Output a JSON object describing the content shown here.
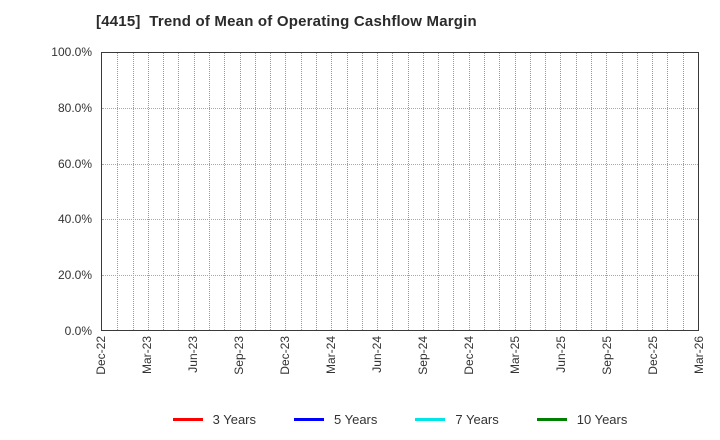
{
  "chart_data": {
    "type": "line",
    "title": "[4415]  Trend of Mean of Operating Cashflow Margin",
    "title_color": "#2b2b2b",
    "xlabel": "",
    "ylabel": "",
    "ylim": [
      0,
      100
    ],
    "y_ticks": {
      "values": [
        0,
        20,
        40,
        60,
        80,
        100
      ],
      "labels": [
        "0.0%",
        "20.0%",
        "40.0%",
        "60.0%",
        "80.0%",
        "100.0%"
      ]
    },
    "x_tick_labels": [
      "Dec-22",
      "Mar-23",
      "Jun-23",
      "Sep-23",
      "Dec-23",
      "Mar-24",
      "Jun-24",
      "Sep-24",
      "Dec-24",
      "Mar-25",
      "Jun-25",
      "Sep-25",
      "Dec-25",
      "Mar-26"
    ],
    "x_total_month_intervals": 39,
    "x_months_per_labeled_tick": 3,
    "grid": true,
    "grid_style": "dotted",
    "grid_color_vertical": "#9a9a9a",
    "grid_color_horizontal": "#a8a8a8",
    "axis_color": "#3a3a3a",
    "legend_position": "bottom",
    "series": [
      {
        "name": "3 Years",
        "color": "#ff0000",
        "values": []
      },
      {
        "name": "5 Years",
        "color": "#0000ff",
        "values": []
      },
      {
        "name": "7 Years",
        "color": "#00e5e5",
        "values": []
      },
      {
        "name": "10 Years",
        "color": "#008000",
        "values": []
      }
    ]
  }
}
